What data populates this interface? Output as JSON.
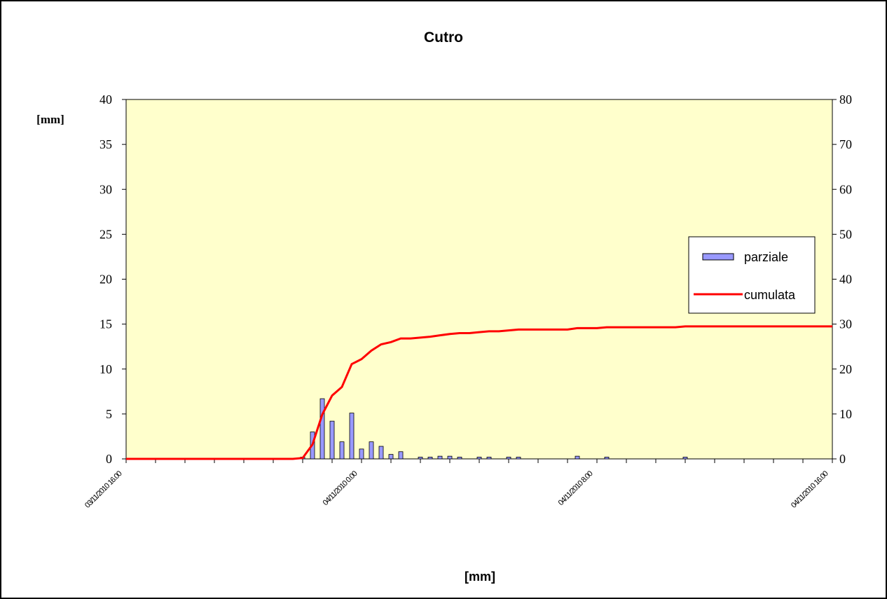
{
  "chart_data": {
    "type": "bar_line",
    "title": "Cutro",
    "y_label": "[mm]",
    "x_label": "[mm]",
    "categories": [
      "03/11/2010 16.00",
      null,
      null,
      null,
      null,
      null,
      null,
      null,
      null,
      null,
      null,
      null,
      null,
      null,
      null,
      null,
      null,
      null,
      null,
      null,
      null,
      null,
      null,
      null,
      "04/11/2010 0.00",
      null,
      null,
      null,
      null,
      null,
      null,
      null,
      null,
      null,
      null,
      null,
      null,
      null,
      null,
      null,
      null,
      null,
      null,
      null,
      null,
      null,
      null,
      null,
      "04/11/2010 8.00",
      null,
      null,
      null,
      null,
      null,
      null,
      null,
      null,
      null,
      null,
      null,
      null,
      null,
      null,
      null,
      null,
      null,
      null,
      null,
      null,
      null,
      null,
      null,
      "04/11/2010 16.00"
    ],
    "series": [
      {
        "name": "parziale",
        "color": "#9999ff",
        "axis": "y",
        "values": [
          0,
          0,
          0,
          0,
          0,
          0,
          0,
          0,
          0,
          0,
          0,
          0,
          0,
          0,
          0,
          0,
          0,
          0,
          0.2,
          3.0,
          6.7,
          4.2,
          1.9,
          5.1,
          1.1,
          1.9,
          1.4,
          0.5,
          0.8,
          0,
          0.2,
          0.2,
          0.3,
          0.3,
          0.2,
          0,
          0.2,
          0.2,
          0,
          0.2,
          0.2,
          0,
          0,
          0,
          0,
          0,
          0.3,
          0,
          0,
          0.2,
          0,
          0,
          0,
          0,
          0,
          0,
          0,
          0.2,
          0,
          0,
          0,
          0,
          0,
          0,
          0,
          0,
          0,
          0,
          0,
          0,
          0,
          0,
          0
        ]
      },
      {
        "name": "cumulata",
        "color": "#ff0000",
        "axis": "y2",
        "values": [
          0,
          0,
          0,
          0,
          0,
          0,
          0,
          0,
          0,
          0,
          0,
          0,
          0,
          0,
          0,
          0,
          0,
          0,
          0.2,
          3.2,
          9.9,
          14.1,
          16.0,
          21.1,
          22.2,
          24.1,
          25.5,
          26.0,
          26.8,
          26.8,
          27.0,
          27.2,
          27.5,
          27.8,
          28.0,
          28.0,
          28.2,
          28.4,
          28.4,
          28.6,
          28.8,
          28.8,
          28.8,
          28.8,
          28.8,
          28.8,
          29.1,
          29.1,
          29.1,
          29.3,
          29.3,
          29.3,
          29.3,
          29.3,
          29.3,
          29.3,
          29.3,
          29.5,
          29.5,
          29.5,
          29.5,
          29.5,
          29.5,
          29.5,
          29.5,
          29.5,
          29.5,
          29.5,
          29.5,
          29.5,
          29.5,
          29.5,
          29.5
        ]
      }
    ],
    "ylim": [
      0,
      40
    ],
    "yticks": [
      0,
      5,
      10,
      15,
      20,
      25,
      30,
      35,
      40
    ],
    "y2lim": [
      0,
      80
    ],
    "y2ticks": [
      0,
      10,
      20,
      30,
      40,
      50,
      60,
      70,
      80
    ],
    "plot_background": "#ffffcc"
  }
}
